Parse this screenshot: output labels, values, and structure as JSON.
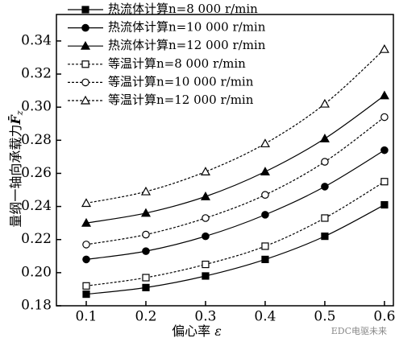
{
  "chart_data": {
    "type": "line",
    "x_label": {
      "text": "偏心率",
      "symbol": "ε"
    },
    "y_label": {
      "text": "量纲一轴向承载力",
      "symbol": "F̄",
      "subscript": "z"
    },
    "x": [
      0.1,
      0.2,
      0.3,
      0.4,
      0.5,
      0.6
    ],
    "xlim": [
      0.05,
      0.615
    ],
    "xticks": [
      0.1,
      0.2,
      0.3,
      0.4,
      0.5,
      0.6
    ],
    "ylim": [
      0.18,
      0.356
    ],
    "yticks": [
      0.18,
      {
        "value": 0.2,
        "label": "0.20"
      },
      0.22,
      0.24,
      0.26,
      0.28,
      {
        "value": 0.3,
        "label": "0.30"
      },
      0.32,
      0.34
    ],
    "series": [
      {
        "name": "热流体计算n=8 000 r/min",
        "color": "#000000",
        "marker": "square",
        "filled": true,
        "dashed": false,
        "values": [
          0.187,
          0.191,
          0.198,
          0.208,
          0.222,
          0.241
        ]
      },
      {
        "name": "热流体计算n=10 000 r/min",
        "color": "#000000",
        "marker": "circle",
        "filled": true,
        "dashed": false,
        "values": [
          0.208,
          0.213,
          0.222,
          0.235,
          0.252,
          0.274
        ]
      },
      {
        "name": "热流体计算n=12 000 r/min",
        "color": "#000000",
        "marker": "triangle",
        "filled": true,
        "dashed": false,
        "values": [
          0.23,
          0.236,
          0.246,
          0.261,
          0.281,
          0.307
        ]
      },
      {
        "name": "等温计算n=8 000 r/min",
        "color": "#000000",
        "marker": "square",
        "filled": false,
        "dashed": true,
        "values": [
          0.192,
          0.197,
          0.205,
          0.216,
          0.233,
          0.255
        ]
      },
      {
        "name": "等温计算n=10 000 r/min",
        "color": "#000000",
        "marker": "circle",
        "filled": false,
        "dashed": true,
        "values": [
          0.217,
          0.223,
          0.233,
          0.247,
          0.267,
          0.294
        ]
      },
      {
        "name": "等温计算n=12 000 r/min",
        "color": "#000000",
        "marker": "triangle",
        "filled": false,
        "dashed": true,
        "values": [
          0.242,
          0.249,
          0.261,
          0.278,
          0.302,
          0.335
        ]
      }
    ],
    "watermark": "EDC电驱未来"
  }
}
